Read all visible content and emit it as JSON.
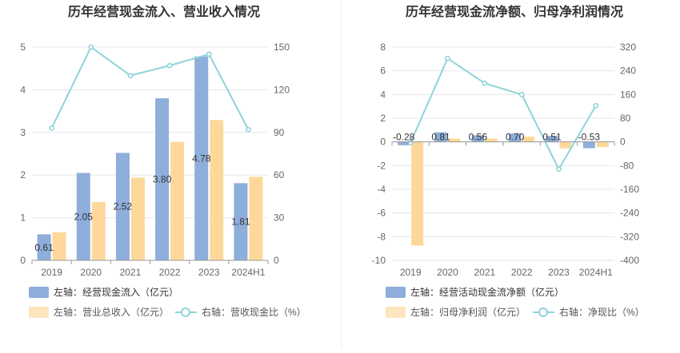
{
  "chart_data": [
    {
      "type": "bar",
      "title": "历年经营现金流入、营业收入情况",
      "categories": [
        "2019",
        "2020",
        "2021",
        "2022",
        "2023",
        "2024H1"
      ],
      "left_axis": {
        "ylim": [
          0,
          5
        ],
        "ticks": [
          "0",
          "1",
          "2",
          "3",
          "4",
          "5"
        ]
      },
      "right_axis": {
        "ylim": [
          0,
          150
        ],
        "ticks": [
          "0",
          "30",
          "60",
          "90",
          "120",
          "150"
        ]
      },
      "series": [
        {
          "name": "左轴：经营现金流入（亿元）",
          "type": "bar",
          "axis": "left",
          "color": "#8eaedb",
          "values": [
            0.61,
            2.05,
            2.52,
            3.8,
            4.78,
            1.81
          ],
          "labels": [
            "0.61",
            "2.05",
            "2.52",
            "3.80",
            "4.78",
            "1.81"
          ]
        },
        {
          "name": "左轴：营业总收入（亿元）",
          "type": "bar",
          "axis": "left",
          "color": "#fdd89a",
          "values": [
            0.66,
            1.37,
            1.94,
            2.78,
            3.29,
            1.96
          ]
        },
        {
          "name": "右轴：营收现金比（%）",
          "type": "line",
          "axis": "right",
          "color": "#8fd3d9",
          "values": [
            93,
            150,
            130,
            137,
            145,
            92
          ]
        }
      ],
      "legend_position": "bottom",
      "grid": true
    },
    {
      "type": "bar",
      "title": "历年经营现金流净额、归母净利润情况",
      "categories": [
        "2019",
        "2020",
        "2021",
        "2022",
        "2023",
        "2024H1"
      ],
      "left_axis": {
        "ylim": [
          -10,
          8
        ],
        "ticks": [
          "-10",
          "-8",
          "-6",
          "-4",
          "-2",
          "0",
          "2",
          "4",
          "6",
          "8"
        ]
      },
      "right_axis": {
        "ylim": [
          -400,
          320
        ],
        "ticks": [
          "-400",
          "-320",
          "-240",
          "-160",
          "-80",
          "0",
          "80",
          "160",
          "240",
          "320"
        ]
      },
      "series": [
        {
          "name": "左轴：经营活动现金流净额（亿元）",
          "type": "bar",
          "axis": "left",
          "color": "#8eaedb",
          "values": [
            -0.28,
            0.81,
            0.56,
            0.7,
            0.51,
            -0.53
          ],
          "labels": [
            "-0.28",
            "0.81",
            "0.56",
            "0.70",
            "0.51",
            "-0.53"
          ]
        },
        {
          "name": "左轴：归母净利润（亿元）",
          "type": "bar",
          "axis": "left",
          "color": "#fdd89a",
          "values": [
            -8.75,
            0.28,
            0.28,
            0.44,
            -0.55,
            -0.44
          ]
        },
        {
          "name": "右轴：净现比（%）",
          "type": "line",
          "axis": "right",
          "color": "#8fd3d9",
          "values": [
            -3,
            282,
            198,
            160,
            -92,
            122
          ]
        }
      ],
      "legend_position": "bottom",
      "grid": true
    }
  ]
}
